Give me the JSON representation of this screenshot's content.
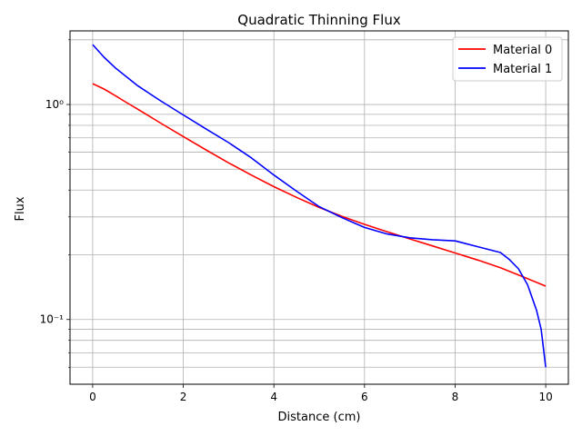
{
  "chart_data": {
    "type": "line",
    "title": "Quadratic Thinning Flux",
    "xlabel": "Distance (cm)",
    "ylabel": "Flux",
    "xlim": [
      -0.5,
      10.5
    ],
    "ylim": [
      0.05,
      2.2
    ],
    "yscale": "log",
    "grid": true,
    "legend_position": "top-right",
    "x_ticks": [
      0,
      2,
      4,
      6,
      8,
      10
    ],
    "x_tick_labels": [
      "0",
      "2",
      "4",
      "6",
      "8",
      "10"
    ],
    "y_major_ticks": [
      0.1,
      1
    ],
    "y_major_tick_labels": [
      "10⁻¹",
      "10⁰"
    ],
    "y_minor_ticks": [
      0.06,
      0.07,
      0.08,
      0.09,
      0.2,
      0.3,
      0.4,
      0.5,
      0.6,
      0.7,
      0.8,
      0.9,
      2
    ],
    "series": [
      {
        "name": "Material 0",
        "color": "#ff0000",
        "x": [
          0,
          0.25,
          0.5,
          0.75,
          1,
          1.5,
          2,
          2.5,
          3,
          3.5,
          4,
          4.5,
          5,
          5.5,
          6,
          6.5,
          7,
          7.5,
          8,
          8.5,
          9,
          9.5,
          10
        ],
        "y": [
          1.25,
          1.18,
          1.1,
          1.02,
          0.95,
          0.82,
          0.71,
          0.615,
          0.535,
          0.47,
          0.415,
          0.37,
          0.332,
          0.302,
          0.277,
          0.256,
          0.237,
          0.22,
          0.204,
          0.189,
          0.174,
          0.158,
          0.143
        ]
      },
      {
        "name": "Material 1",
        "color": "#0000ff",
        "x": [
          0,
          0.25,
          0.5,
          1,
          1.5,
          2,
          2.5,
          3,
          3.5,
          4,
          4.5,
          5,
          5.5,
          6,
          6.5,
          7,
          7.5,
          8,
          8.5,
          9,
          9.2,
          9.4,
          9.6,
          9.8,
          9.9,
          10
        ],
        "y": [
          1.9,
          1.66,
          1.48,
          1.22,
          1.04,
          0.895,
          0.77,
          0.665,
          0.565,
          0.47,
          0.395,
          0.335,
          0.298,
          0.268,
          0.25,
          0.24,
          0.235,
          0.232,
          0.218,
          0.205,
          0.19,
          0.172,
          0.145,
          0.11,
          0.09,
          0.06
        ]
      }
    ]
  }
}
